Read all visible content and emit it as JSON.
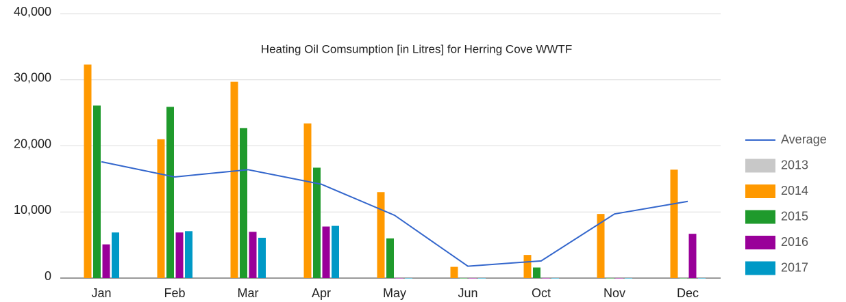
{
  "chart_data": {
    "type": "bar",
    "title": "Heating Oil Comsumption [in Litres] for Herring Cove WWTF",
    "categories": [
      "Jan",
      "Feb",
      "Mar",
      "Apr",
      "May",
      "Jun",
      "Oct",
      "Nov",
      "Dec"
    ],
    "series": [
      {
        "name": "2013",
        "color": "#c8c8c8",
        "values": [
          null,
          null,
          null,
          null,
          null,
          null,
          null,
          null,
          null
        ]
      },
      {
        "name": "2014",
        "color": "#ff9900",
        "values": [
          32300,
          21000,
          29700,
          23400,
          13000,
          1700,
          3500,
          9700,
          16400
        ]
      },
      {
        "name": "2015",
        "color": "#1f9a2c",
        "values": [
          26100,
          25900,
          22700,
          16700,
          6000,
          0,
          1600,
          0,
          0
        ]
      },
      {
        "name": "2016",
        "color": "#990099",
        "values": [
          5100,
          6900,
          7000,
          7800,
          0,
          0,
          0,
          0,
          6700
        ]
      },
      {
        "name": "2017",
        "color": "#0099c6",
        "values": [
          6900,
          7100,
          6100,
          7900,
          0,
          0,
          0,
          0,
          0
        ]
      }
    ],
    "line": {
      "name": "Average",
      "color": "#3366cc",
      "values": [
        17600,
        15300,
        16400,
        14200,
        9500,
        1800,
        2600,
        9700,
        11600
      ]
    },
    "ylim": [
      0,
      40000
    ],
    "yticks": [
      0,
      {
        "value": 10000,
        "label": "10,000"
      },
      {
        "value": 20000,
        "label": "20,000"
      },
      {
        "value": 30000,
        "label": "30,000"
      },
      {
        "value": 40000,
        "label": "40,000"
      }
    ],
    "grid": true,
    "legend": "right"
  }
}
